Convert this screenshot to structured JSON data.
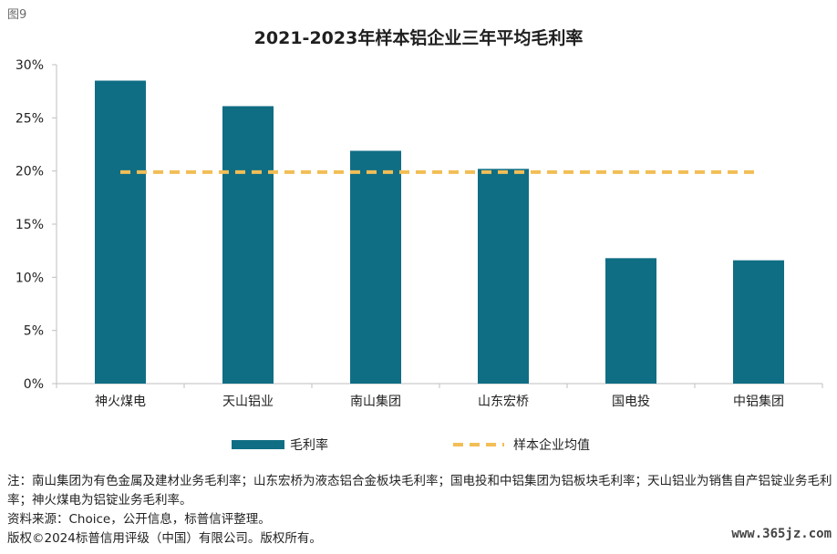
{
  "figure_label": "图9",
  "chart_data": {
    "type": "bar",
    "title": "2021-2023年样本铝企业三年平均毛利率",
    "categories": [
      "神火煤电",
      "天山铝业",
      "南山集团",
      "山东宏桥",
      "国电投",
      "中铝集团"
    ],
    "series": [
      {
        "name": "毛利率",
        "type": "bar",
        "color": "#0f6e84",
        "values": [
          28.5,
          26.1,
          21.9,
          20.2,
          11.8,
          11.6
        ]
      },
      {
        "name": "样本企业均值",
        "type": "line",
        "style": "dashed",
        "color": "#f2be55",
        "values": [
          19.9,
          19.9,
          19.9,
          19.9,
          19.9,
          19.9
        ]
      }
    ],
    "y_ticks": [
      "0%",
      "5%",
      "10%",
      "15%",
      "20%",
      "25%",
      "30%"
    ],
    "ylim": [
      0,
      30
    ],
    "y_unit": "%",
    "grid": false,
    "legend_position": "bottom"
  },
  "notes": [
    "注：南山集团为有色金属及建材业务毛利率；山东宏桥为液态铝合金板块毛利率；国电投和中铝集团为铝板块毛利率；天山铝业为销售自产铝锭业务毛利率；神火煤电为铝锭业务毛利率。",
    "资料来源：Choice，公开信息，标普信评整理。",
    "版权©2024标普信用评级（中国）有限公司。版权所有。"
  ],
  "watermark": "www.365jz.com"
}
